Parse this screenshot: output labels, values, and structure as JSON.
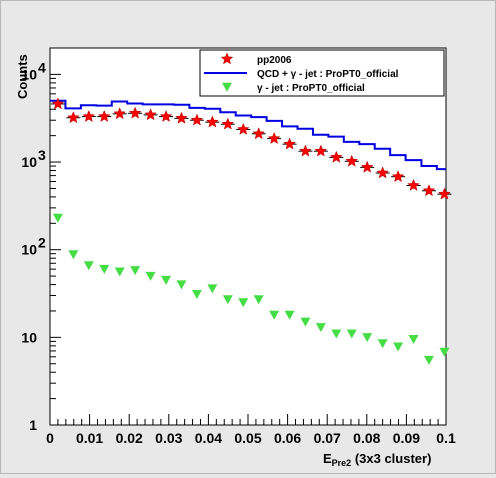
{
  "chart_data": {
    "type": "scatter",
    "title": "",
    "xlabel_main": "E",
    "xlabel_sub": "Pre2",
    "xlabel_rest": " (3x3 cluster)",
    "ylabel": "Counts",
    "xlim": [
      0,
      0.1
    ],
    "ylim": [
      1,
      20000
    ],
    "y_scale": "log",
    "x_ticks": [
      {
        "value": 0,
        "label": "0"
      },
      {
        "value": 0.01,
        "label": "0.01"
      },
      {
        "value": 0.02,
        "label": "0.02"
      },
      {
        "value": 0.03,
        "label": "0.03"
      },
      {
        "value": 0.04,
        "label": "0.04"
      },
      {
        "value": 0.05,
        "label": "0.05"
      },
      {
        "value": 0.06,
        "label": "0.06"
      },
      {
        "value": 0.07,
        "label": "0.07"
      },
      {
        "value": 0.08,
        "label": "0.08"
      },
      {
        "value": 0.09,
        "label": "0.09"
      },
      {
        "value": 0.1,
        "label": "0.1"
      }
    ],
    "y_ticks": [
      {
        "value": 1,
        "base": "1",
        "exp": ""
      },
      {
        "value": 10,
        "base": "10",
        "exp": ""
      },
      {
        "value": 100,
        "base": "10",
        "exp": "2"
      },
      {
        "value": 1000,
        "base": "10",
        "exp": "3"
      },
      {
        "value": 10000,
        "base": "10",
        "exp": "4"
      }
    ],
    "grid": false,
    "legend_position": "top-right",
    "series": [
      {
        "name": "pp2006",
        "kind": "points",
        "marker": "star",
        "color": "#ff0000",
        "x": [
          0.002,
          0.0059,
          0.0098,
          0.0137,
          0.0176,
          0.0215,
          0.0254,
          0.0293,
          0.0332,
          0.0371,
          0.041,
          0.0449,
          0.0488,
          0.0527,
          0.0566,
          0.0605,
          0.0645,
          0.0684,
          0.0723,
          0.0762,
          0.0801,
          0.084,
          0.0879,
          0.0918,
          0.0957,
          0.0996
        ],
        "y": [
          4600,
          3200,
          3300,
          3300,
          3550,
          3600,
          3450,
          3300,
          3150,
          3000,
          2850,
          2700,
          2350,
          2100,
          1850,
          1600,
          1330,
          1330,
          1130,
          1020,
          870,
          750,
          680,
          540,
          470,
          430
        ]
      },
      {
        "name": "QCD + γ - jet : ProPT0_official",
        "kind": "step",
        "color": "#0000e0",
        "bin_edges": [
          0,
          0.0039,
          0.0078,
          0.0117,
          0.0156,
          0.0195,
          0.0234,
          0.0273,
          0.0313,
          0.0352,
          0.0391,
          0.043,
          0.0469,
          0.0508,
          0.0547,
          0.0586,
          0.0625,
          0.0664,
          0.0703,
          0.0742,
          0.0781,
          0.082,
          0.0859,
          0.0898,
          0.0938,
          0.0977,
          0.1016
        ],
        "y": [
          5000,
          4100,
          4450,
          4400,
          4900,
          4650,
          4550,
          4550,
          4500,
          4150,
          4050,
          3700,
          3400,
          3250,
          2950,
          2550,
          2400,
          2050,
          1950,
          1700,
          1600,
          1420,
          1200,
          1050,
          900,
          830
        ]
      },
      {
        "name": "γ - jet : ProPT0_official",
        "kind": "points",
        "marker": "triangle-down",
        "color": "#44dd44",
        "x": [
          0.002,
          0.0059,
          0.0098,
          0.0137,
          0.0176,
          0.0215,
          0.0254,
          0.0293,
          0.0332,
          0.0371,
          0.041,
          0.0449,
          0.0488,
          0.0527,
          0.0566,
          0.0605,
          0.0645,
          0.0684,
          0.0723,
          0.0762,
          0.0801,
          0.084,
          0.0879,
          0.0918,
          0.0957,
          0.0996
        ],
        "y": [
          230,
          88,
          66,
          60,
          56,
          58,
          50,
          45,
          40,
          31,
          36,
          27,
          25,
          27,
          18,
          18,
          15,
          13,
          11,
          11,
          10,
          8.5,
          7.8,
          9.5,
          5.5,
          6.8
        ]
      }
    ]
  }
}
